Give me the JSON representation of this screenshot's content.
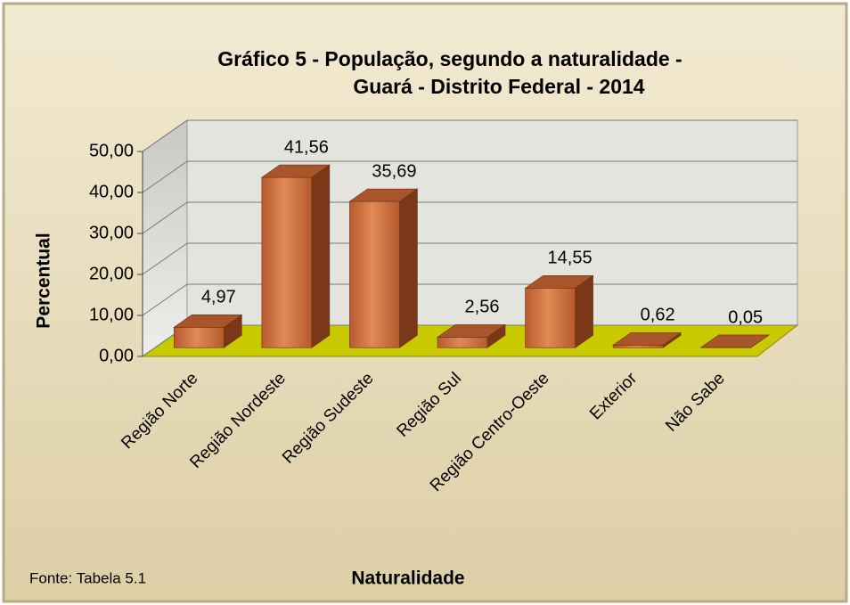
{
  "chart_data": {
    "type": "bar3d",
    "title": [
      "Gráfico 5 - População, segundo a naturalidade -",
      "Guará - Distrito Federal - 2014"
    ],
    "xlabel": "Naturalidade",
    "ylabel": "Percentual",
    "source": "Fonte: Tabela 5.1",
    "categories": [
      "Região Norte",
      "Região Nordeste",
      "Região Sudeste",
      "Região Sul",
      "Região Centro-Oeste",
      "Exterior",
      "Não Sabe"
    ],
    "values": [
      4.97,
      41.56,
      35.69,
      2.56,
      14.55,
      0.62,
      0.05
    ],
    "value_labels": [
      "4,97",
      "41,56",
      "35,69",
      "2,56",
      "14,55",
      "0,62",
      "0,05"
    ],
    "color": "#c8693b",
    "ylim": [
      0,
      50
    ],
    "yticks": [
      {
        "value": 0,
        "label": "0,00"
      },
      {
        "value": 10,
        "label": "10,00"
      },
      {
        "value": 20,
        "label": "20,00"
      },
      {
        "value": 30,
        "label": "30,00"
      },
      {
        "value": 40,
        "label": "40,00"
      },
      {
        "value": 50,
        "label": "50,00"
      }
    ],
    "grid": true
  }
}
